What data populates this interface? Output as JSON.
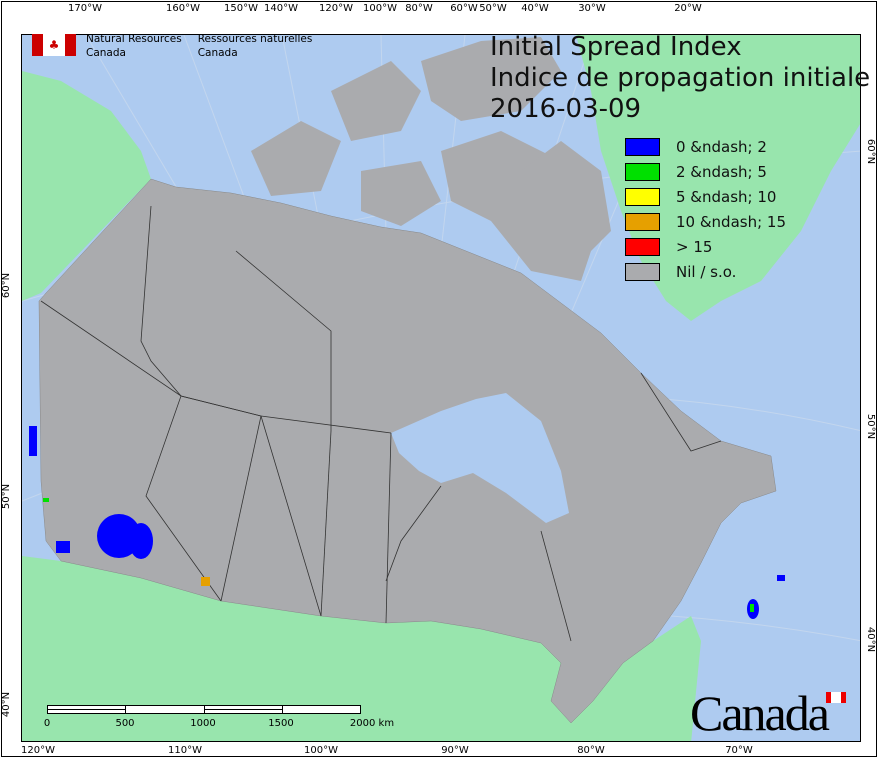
{
  "logo": {
    "en_line1": "Natural Resources",
    "en_line2": "Canada",
    "fr_line1": "Ressources naturelles",
    "fr_line2": "Canada"
  },
  "title": {
    "en": "Initial Spread Index",
    "fr": "Indice de propagation initiale",
    "date": "2016-03-09"
  },
  "legend": [
    {
      "label": "0 &ndash; 2",
      "color": "#0000ff"
    },
    {
      "label": "2 &ndash; 5",
      "color": "#00e000"
    },
    {
      "label": "5 &ndash; 10",
      "color": "#ffff00"
    },
    {
      "label": "10 &ndash; 15",
      "color": "#e6a000"
    },
    {
      "label": "> 15",
      "color": "#ff0000"
    },
    {
      "label": "Nil / s.o.",
      "color": "#aaabae"
    }
  ],
  "axes": {
    "top": [
      "170°W",
      "160°W",
      "150°W",
      "140°W",
      "120°W",
      "100°W",
      "80°W",
      "60°W",
      "50°W",
      "40°W",
      "30°W",
      "20°W"
    ],
    "bottom": [
      "120°W",
      "110°W",
      "100°W",
      "90°W",
      "80°W",
      "70°W"
    ],
    "left": [
      "60°N",
      "50°N",
      "40°N"
    ],
    "right": [
      "60°N",
      "50°N",
      "40°N"
    ]
  },
  "scale": {
    "labels": [
      "0",
      "500",
      "1000",
      "1500",
      "2000 km"
    ]
  },
  "wordmark": "Canada",
  "colors": {
    "water": "#aecbf0",
    "land_other": "#98e5ad",
    "canada_nil": "#aaabae"
  }
}
